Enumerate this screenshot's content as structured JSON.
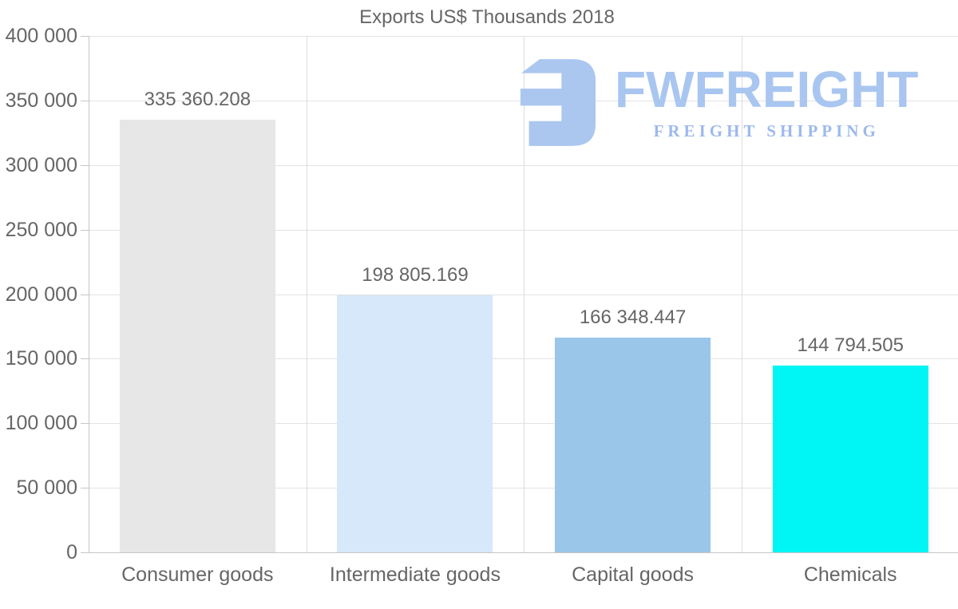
{
  "title": "Exports US$ Thousands 2018",
  "watermark": {
    "brand": "FWFREIGHT",
    "tagline": "FREIGHT SHIPPING",
    "glyph_color": "#abc7f0",
    "brand_color": "#a9c6f1",
    "tagline_color": "#9db9ec"
  },
  "chart_data": {
    "type": "bar",
    "title": "Exports US$ Thousands 2018",
    "categories": [
      "Consumer goods",
      "Intermediate goods",
      "Capital goods",
      "Chemicals"
    ],
    "values": [
      335360.208,
      198805.169,
      166348.447,
      144794.505
    ],
    "value_labels": [
      "335 360.208",
      "198 805.169",
      "166 348.447",
      "144 794.505"
    ],
    "bar_colors": [
      "#e7e7e7",
      "#d6e8f9",
      "#99c6e9",
      "#00f5f5"
    ],
    "xlabel": "",
    "ylabel": "",
    "ylim": [
      0,
      400000
    ],
    "ytick_step": 50000,
    "ytick_labels": [
      "0",
      "50 000",
      "100 000",
      "150 000",
      "200 000",
      "250 000",
      "300 000",
      "350 000",
      "400 000"
    ],
    "grid": true,
    "legend_position": "none",
    "text_color": "#666666",
    "grid_color": "#e3e3e3",
    "axis_color": "#c6c6c6"
  }
}
